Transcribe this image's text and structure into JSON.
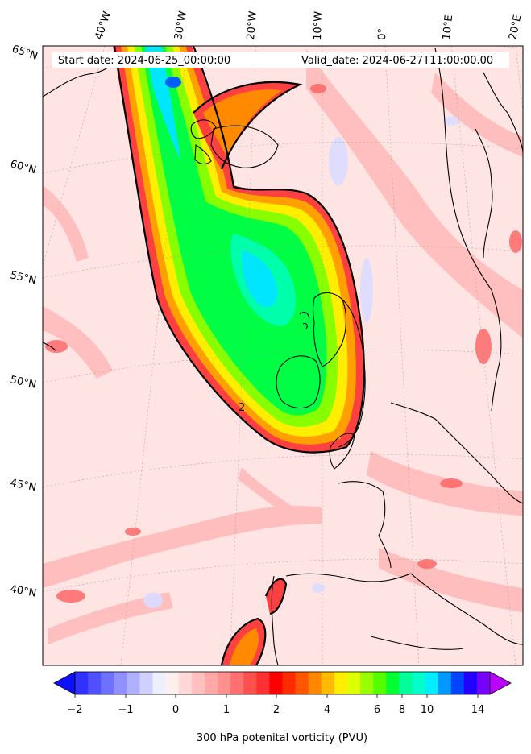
{
  "map": {
    "start_label": "Start date: 2024-06-25_00:00:00",
    "valid_label": "Valid_date: 2024-06-27T11:00:00.00",
    "lon_labels": [
      "40°W",
      "30°W",
      "20°W",
      "10°W",
      "0°",
      "10°E",
      "20°E"
    ],
    "lat_labels": [
      "65°N",
      "60°N",
      "55°N",
      "50°N",
      "45°N",
      "40°N"
    ],
    "contour_label": "2",
    "colors": {
      "background": "#ffe4e4",
      "coastline": "#000000",
      "contour": "#000000"
    }
  },
  "colorbar": {
    "label": "300 hPa potenital vorticity (PVU)",
    "tick_labels": [
      "−2",
      "−1",
      "0",
      "1",
      "2",
      "4",
      "6",
      "8",
      "10",
      "14"
    ],
    "colors": [
      "#1010ff",
      "#3030ff",
      "#5050ff",
      "#7070ff",
      "#9090ff",
      "#b0b0ff",
      "#d0d0ff",
      "#eeeeff",
      "#ffeeee",
      "#ffd8d8",
      "#ffc0c0",
      "#ffa8a8",
      "#ff9090",
      "#ff7070",
      "#ff5050",
      "#ff3030",
      "#ff0000",
      "#ff2a00",
      "#ff5500",
      "#ff8800",
      "#ffbb00",
      "#ffee00",
      "#ddff00",
      "#99ff00",
      "#55ff00",
      "#00ff33",
      "#00ff99",
      "#00ffcc",
      "#00eeff",
      "#0099ff",
      "#0044ff",
      "#2200ff",
      "#7700ff",
      "#bb00ff"
    ]
  }
}
